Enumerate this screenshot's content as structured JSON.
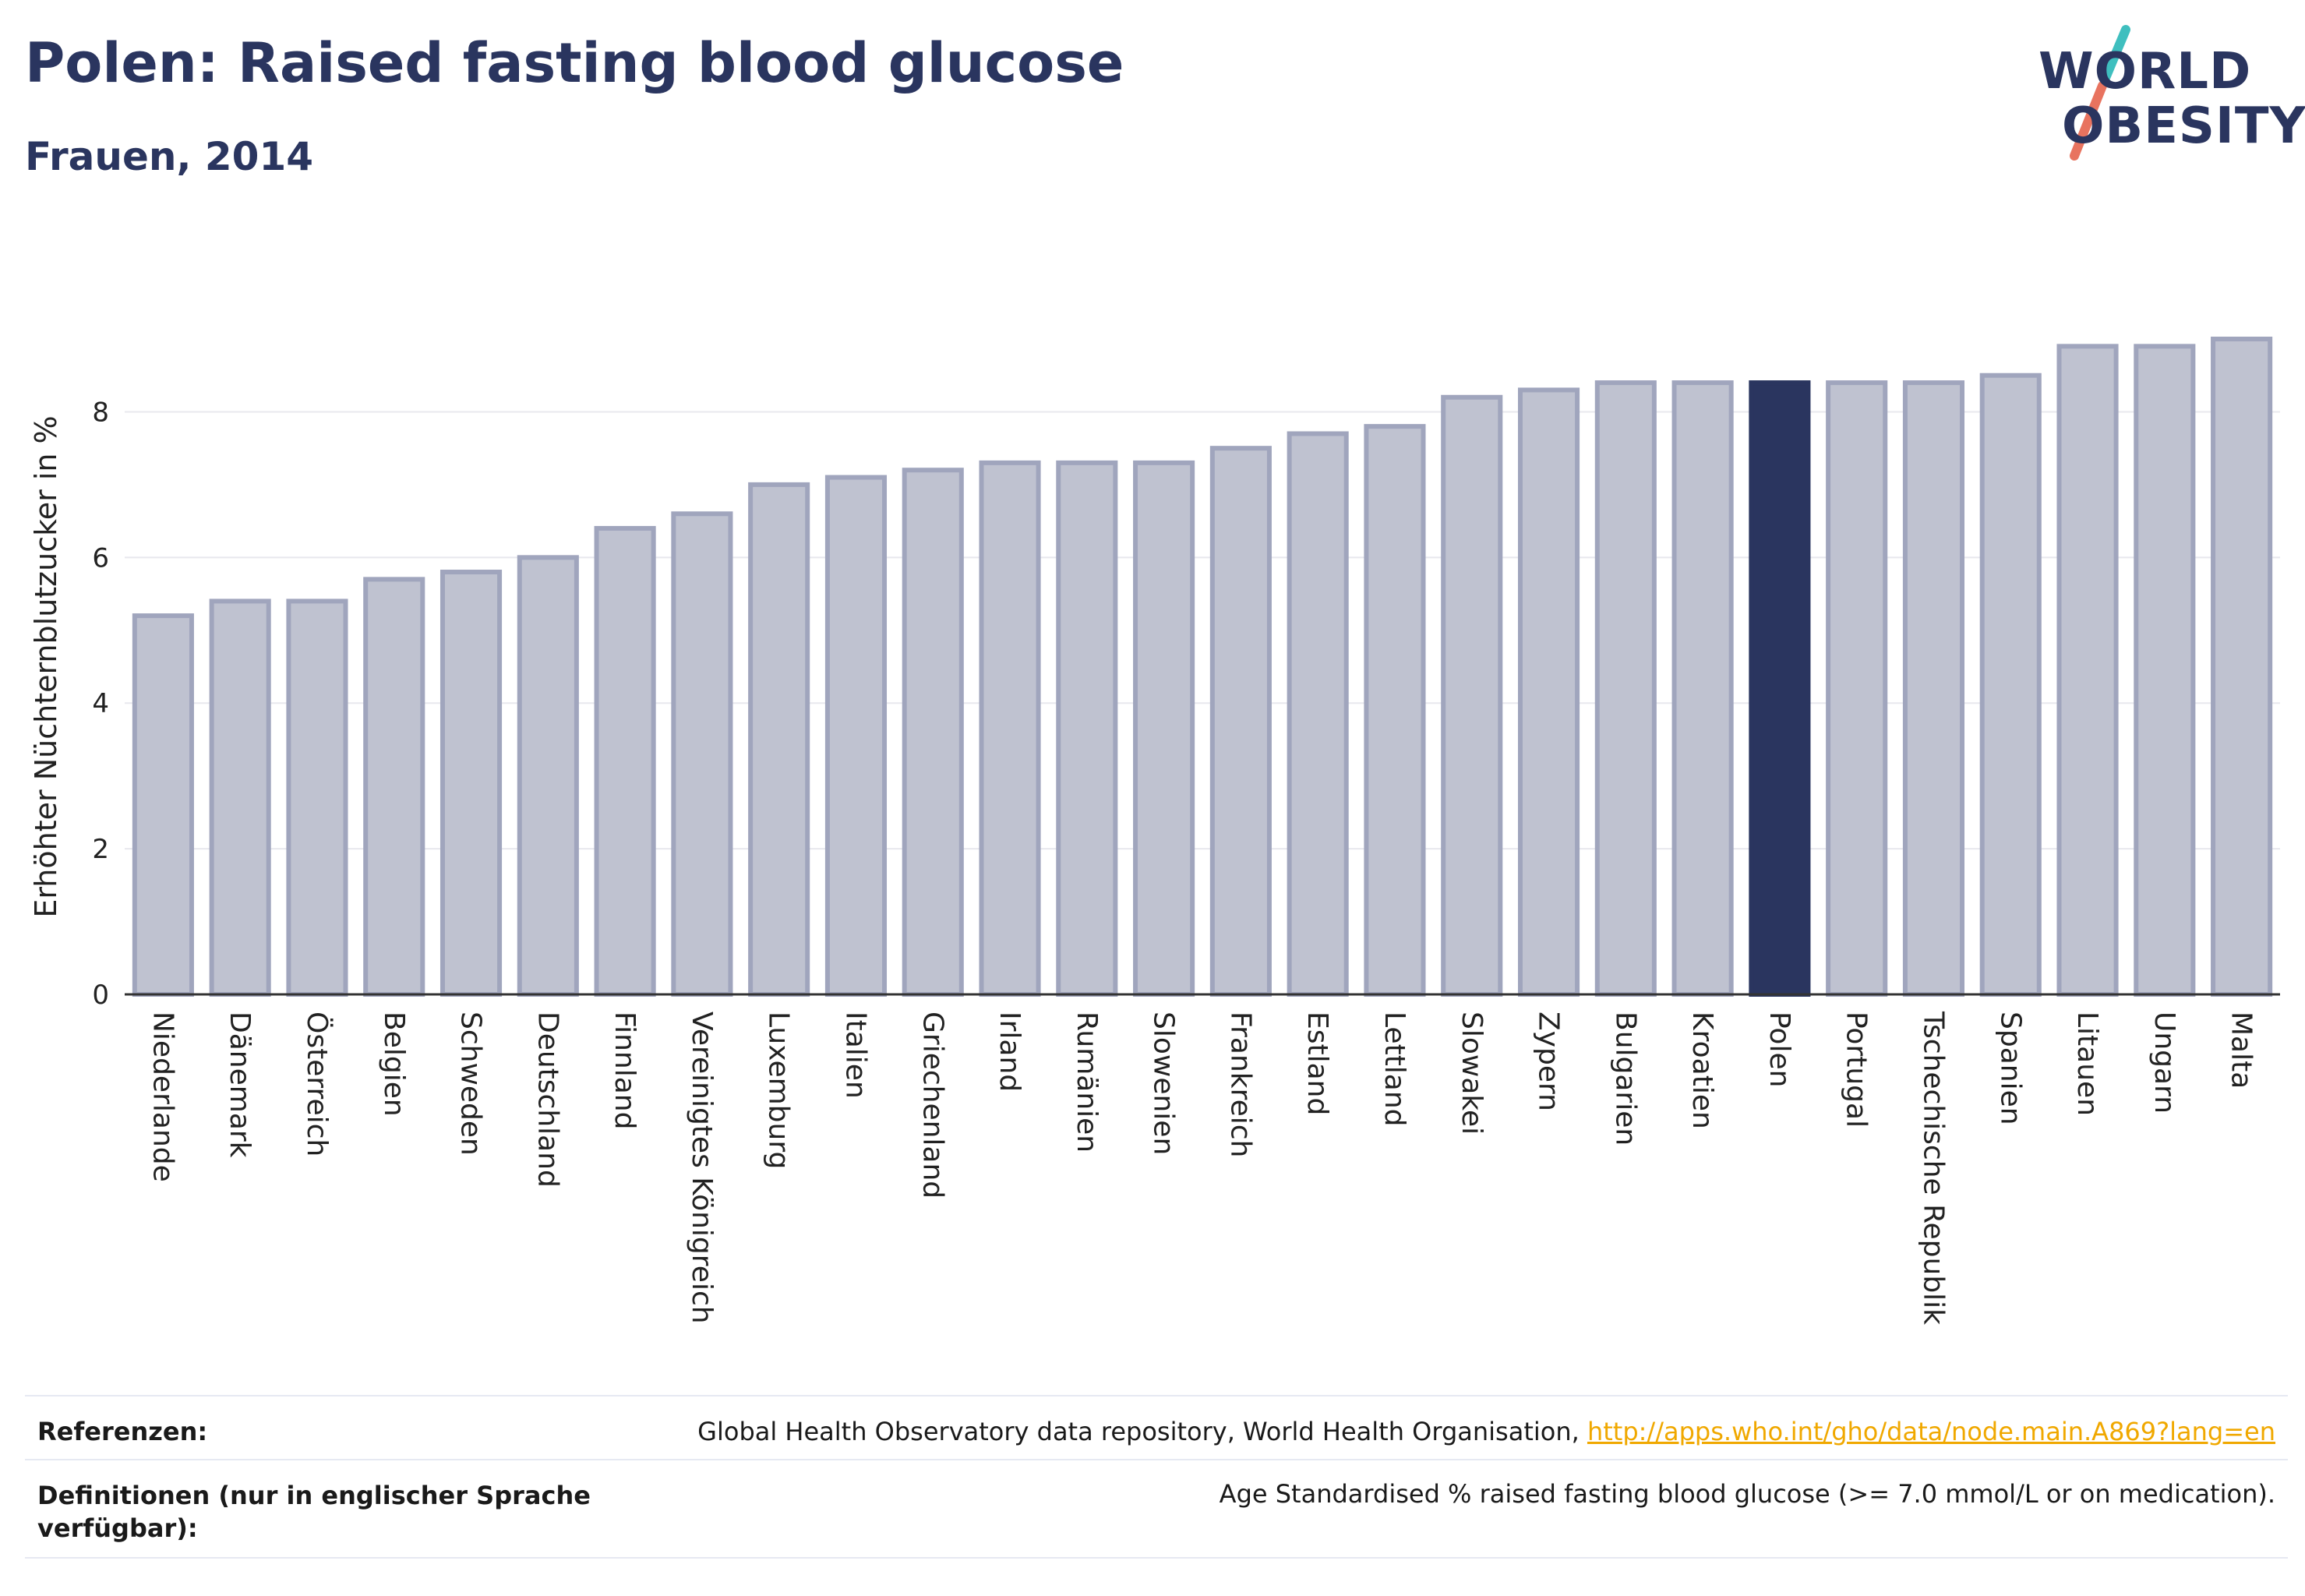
{
  "header": {
    "title": "Polen: Raised fasting blood glucose",
    "subtitle": "Frauen, 2014"
  },
  "logo": {
    "line1": "WORLD",
    "line2": "OBESITY",
    "colors": {
      "text": "#2a355f",
      "slash_top": "#3fbfbf",
      "slash_bottom": "#e8735f"
    }
  },
  "colors": {
    "bar_fill": "#bfc2d0",
    "bar_stroke": "#a0a5bd",
    "highlight_fill": "#2a355f",
    "grid": "#e8e8ee",
    "axis": "#333333"
  },
  "chart_data": {
    "type": "bar",
    "ylabel": "Erhöhter Nüchternblutzucker in %",
    "ylim": [
      0,
      9.5
    ],
    "yticks": [
      0,
      2,
      4,
      6,
      8
    ],
    "grid": true,
    "highlight": "Polen",
    "categories": [
      "Niederlande",
      "Dänemark",
      "Österreich",
      "Belgien",
      "Schweden",
      "Deutschland",
      "Finnland",
      "Vereinigtes Königreich",
      "Luxemburg",
      "Italien",
      "Griechenland",
      "Irland",
      "Rumänien",
      "Slowenien",
      "Frankreich",
      "Estland",
      "Lettland",
      "Slowakei",
      "Zypern",
      "Bulgarien",
      "Kroatien",
      "Polen",
      "Portugal",
      "Tschechische Republik",
      "Spanien",
      "Litauen",
      "Ungarn",
      "Malta"
    ],
    "values": [
      5.2,
      5.4,
      5.4,
      5.7,
      5.8,
      6.0,
      6.4,
      6.6,
      7.0,
      7.1,
      7.2,
      7.3,
      7.3,
      7.3,
      7.5,
      7.7,
      7.8,
      8.2,
      8.3,
      8.4,
      8.4,
      8.4,
      8.4,
      8.4,
      8.5,
      8.9,
      8.9,
      9.0
    ]
  },
  "footer": {
    "references_label": "Referenzen:",
    "references_text": "Global Health Observatory data repository, World Health Organisation, ",
    "references_link": "http://apps.who.int/gho/data/node.main.A869?lang=en",
    "definitions_label_line1": "Definitionen (nur in englischer Sprache",
    "definitions_label_line2": "verfügbar):",
    "definitions_text": "Age Standardised % raised fasting blood glucose (>= 7.0 mmol/L or on medication)."
  }
}
